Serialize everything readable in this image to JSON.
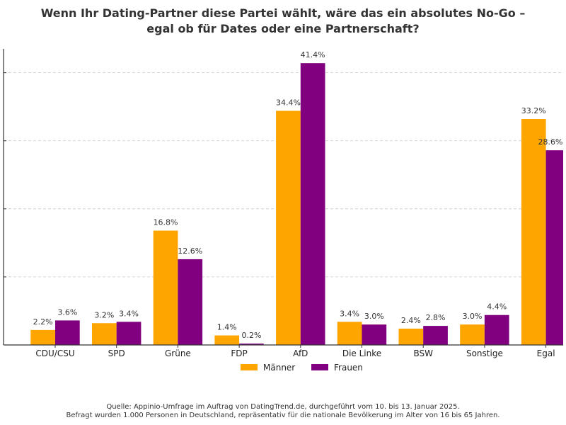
{
  "chart_data": {
    "type": "bar",
    "title": "Wenn Ihr Dating-Partner diese Partei wählt, wäre das ein absolutes No-Go – egal ob für Dates oder eine Partnerschaft?",
    "title_lines": [
      "Wenn Ihr Dating-Partner diese Partei wählt, wäre das ein absolutes No-Go –",
      "egal ob für Dates oder eine Partnerschaft?"
    ],
    "categories": [
      "CDU/CSU",
      "SPD",
      "Grüne",
      "FDP",
      "AfD",
      "Die Linke",
      "BSW",
      "Sonstige",
      "Egal"
    ],
    "series": [
      {
        "name": "Männer",
        "color": "#FFA500",
        "values": [
          2.2,
          3.2,
          16.8,
          1.4,
          34.4,
          3.4,
          2.4,
          3.0,
          33.2
        ]
      },
      {
        "name": "Frauen",
        "color": "#800080",
        "values": [
          3.6,
          3.4,
          12.6,
          0.2,
          41.4,
          3.0,
          2.8,
          4.4,
          28.6
        ]
      }
    ],
    "value_unit": "%",
    "ylim": [
      0,
      43.5
    ],
    "yticks": [
      10,
      20,
      30,
      40
    ],
    "grid": "horizontal dashed",
    "legend": "bottom-center",
    "xlabel": "",
    "ylabel": ""
  },
  "source": {
    "line1": "Quelle: Appinio-Umfrage im Auftrag von DatingTrend.de, durchgeführt vom 10. bis 13. Januar 2025.",
    "line2": "Befragt wurden 1.000 Personen in Deutschland, repräsentativ für die nationale Bevölkerung im Alter von 16 bis 65 Jahren."
  }
}
